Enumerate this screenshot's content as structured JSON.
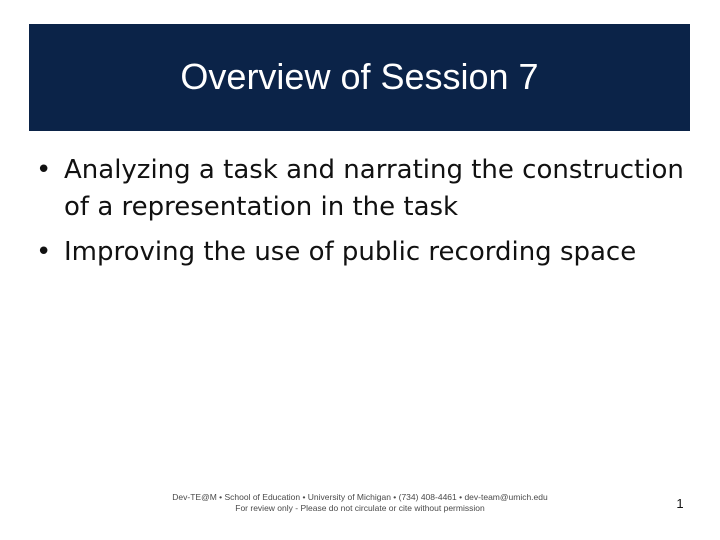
{
  "slide": {
    "title": "Overview of Session 7",
    "bullets": [
      "Analyzing a task and narrating the construction of a representation in the task",
      "Improving the use of public recording space"
    ],
    "footer": {
      "line1": "Dev-TE@M • School of Education • University of Michigan • (734) 408-4461 • dev-team@umich.edu",
      "line2": "For review only - Please do not circulate or cite without permission"
    },
    "page_number": "1",
    "bullet_symbol": "•"
  },
  "colors": {
    "title_bar": "#0b2348",
    "title_text": "#ffffff",
    "body_text": "#111111",
    "footer_text": "#4a4a4a"
  }
}
